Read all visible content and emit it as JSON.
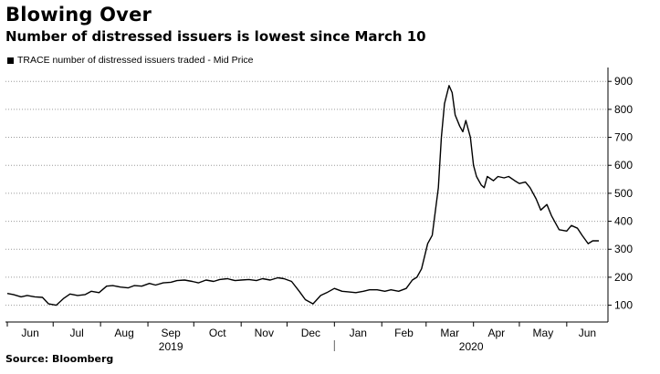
{
  "title": "Blowing Over",
  "subtitle": "Number of distressed issuers is lowest since March 10",
  "legend_label": "TRACE number of distressed issuers traded - Mid Price",
  "source": "Source: Bloomberg",
  "colors": {
    "line": "#000000",
    "grid": "#9a9a9a",
    "axis": "#000000"
  },
  "chart_data": {
    "type": "line",
    "title": "Blowing Over",
    "subtitle": "Number of distressed issuers is lowest since March 10",
    "xlabel": "",
    "ylabel": "",
    "y_axis_side": "right",
    "ylim": [
      40,
      930
    ],
    "yticks": [
      100,
      200,
      300,
      400,
      500,
      600,
      700,
      800,
      900
    ],
    "grid": true,
    "legend_placement": "top-left",
    "month_labels": [
      "Jun",
      "Jul",
      "Aug",
      "Sep",
      "Oct",
      "Nov",
      "Dec",
      "Jan",
      "Feb",
      "Mar",
      "Apr",
      "May",
      "Jun"
    ],
    "year_labels": [
      "2019",
      "2020"
    ],
    "series": [
      {
        "name": "TRACE number of distressed issuers traded - Mid Price",
        "x": [
          "2019-06-01",
          "2019-06-05",
          "2019-06-10",
          "2019-06-14",
          "2019-06-19",
          "2019-06-24",
          "2019-06-28",
          "2019-07-03",
          "2019-07-08",
          "2019-07-12",
          "2019-07-17",
          "2019-07-22",
          "2019-07-26",
          "2019-07-31",
          "2019-08-05",
          "2019-08-09",
          "2019-08-14",
          "2019-08-19",
          "2019-08-23",
          "2019-08-28",
          "2019-09-02",
          "2019-09-06",
          "2019-09-11",
          "2019-09-16",
          "2019-09-20",
          "2019-09-25",
          "2019-09-30",
          "2019-10-04",
          "2019-10-09",
          "2019-10-14",
          "2019-10-18",
          "2019-10-23",
          "2019-10-28",
          "2019-11-01",
          "2019-11-06",
          "2019-11-11",
          "2019-11-15",
          "2019-11-20",
          "2019-11-25",
          "2019-11-29",
          "2019-12-04",
          "2019-12-09",
          "2019-12-13",
          "2019-12-18",
          "2019-12-23",
          "2019-12-27",
          "2020-01-01",
          "2020-01-06",
          "2020-01-10",
          "2020-01-15",
          "2020-01-20",
          "2020-01-24",
          "2020-01-29",
          "2020-02-03",
          "2020-02-07",
          "2020-02-12",
          "2020-02-17",
          "2020-02-21",
          "2020-02-24",
          "2020-02-27",
          "2020-03-02",
          "2020-03-05",
          "2020-03-09",
          "2020-03-11",
          "2020-03-13",
          "2020-03-16",
          "2020-03-18",
          "2020-03-20",
          "2020-03-23",
          "2020-03-25",
          "2020-03-27",
          "2020-03-30",
          "2020-04-01",
          "2020-04-03",
          "2020-04-06",
          "2020-04-08",
          "2020-04-10",
          "2020-04-14",
          "2020-04-17",
          "2020-04-21",
          "2020-04-24",
          "2020-04-28",
          "2020-05-01",
          "2020-05-05",
          "2020-05-08",
          "2020-05-12",
          "2020-05-15",
          "2020-05-19",
          "2020-05-22",
          "2020-05-27",
          "2020-06-01",
          "2020-06-04",
          "2020-06-08",
          "2020-06-11",
          "2020-06-15",
          "2020-06-18",
          "2020-06-22"
        ],
        "values": [
          142,
          138,
          130,
          135,
          130,
          128,
          105,
          100,
          125,
          140,
          135,
          138,
          150,
          145,
          168,
          170,
          165,
          162,
          170,
          168,
          178,
          172,
          180,
          182,
          188,
          190,
          185,
          180,
          190,
          185,
          192,
          195,
          188,
          190,
          192,
          188,
          195,
          190,
          198,
          195,
          185,
          150,
          120,
          105,
          135,
          145,
          160,
          150,
          148,
          145,
          150,
          155,
          155,
          150,
          155,
          150,
          160,
          190,
          200,
          230,
          320,
          350,
          520,
          700,
          820,
          885,
          860,
          780,
          740,
          720,
          760,
          700,
          600,
          560,
          530,
          520,
          560,
          545,
          560,
          555,
          560,
          545,
          535,
          540,
          520,
          480,
          440,
          460,
          420,
          370,
          365,
          385,
          375,
          350,
          320,
          330,
          330
        ]
      }
    ]
  }
}
